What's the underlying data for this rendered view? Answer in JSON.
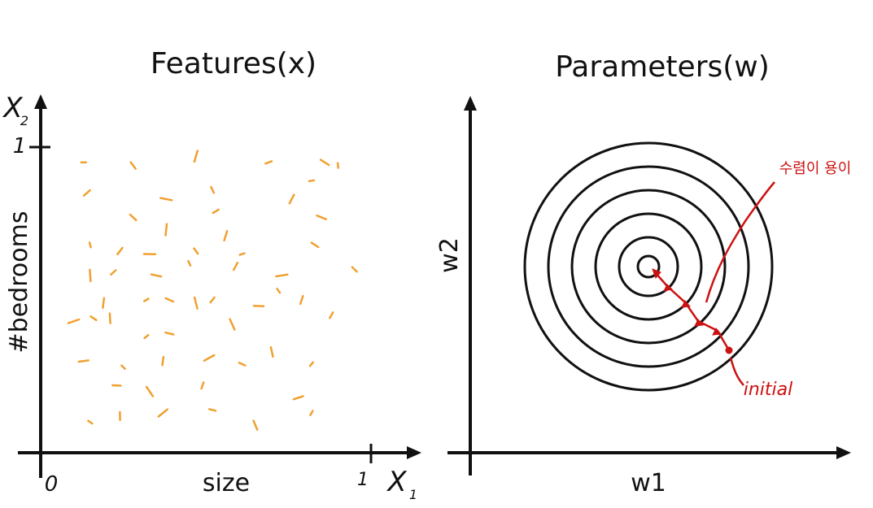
{
  "left_panel": {
    "title": "Features(x)",
    "x_label": "size",
    "y_label": "#bedrooms",
    "x_axis_name": "X",
    "x_axis_sub": "1",
    "y_axis_name": "X",
    "y_axis_sub": "2",
    "origin_tick": "0",
    "x_max_tick": "1",
    "y_max_tick": "1",
    "point_color": "#f0a030",
    "x_range": [
      0,
      1
    ],
    "y_range": [
      0,
      1
    ]
  },
  "right_panel": {
    "title": "Parameters(w)",
    "x_label": "w1",
    "y_label": "w2",
    "contour_count": 6,
    "annotation_text": "수렴이 용이",
    "start_label": "initial",
    "path_color": "#cc1111"
  },
  "chart_data": {
    "type": "scatter",
    "xlabel": "size",
    "ylabel": "#bedrooms",
    "xlim": [
      0,
      1
    ],
    "ylim": [
      0,
      1
    ],
    "points": [
      [
        0.13,
        0.95
      ],
      [
        0.28,
        0.94
      ],
      [
        0.47,
        0.97
      ],
      [
        0.69,
        0.95
      ],
      [
        0.86,
        0.95
      ],
      [
        0.9,
        0.94
      ],
      [
        0.14,
        0.85
      ],
      [
        0.38,
        0.83
      ],
      [
        0.52,
        0.86
      ],
      [
        0.76,
        0.83
      ],
      [
        0.82,
        0.89
      ],
      [
        0.28,
        0.77
      ],
      [
        0.38,
        0.73
      ],
      [
        0.53,
        0.79
      ],
      [
        0.85,
        0.77
      ],
      [
        0.15,
        0.68
      ],
      [
        0.24,
        0.66
      ],
      [
        0.33,
        0.65
      ],
      [
        0.47,
        0.66
      ],
      [
        0.56,
        0.71
      ],
      [
        0.61,
        0.65
      ],
      [
        0.83,
        0.68
      ],
      [
        0.15,
        0.58
      ],
      [
        0.22,
        0.59
      ],
      [
        0.35,
        0.58
      ],
      [
        0.45,
        0.62
      ],
      [
        0.59,
        0.61
      ],
      [
        0.73,
        0.58
      ],
      [
        0.95,
        0.6
      ],
      [
        0.19,
        0.49
      ],
      [
        0.32,
        0.5
      ],
      [
        0.39,
        0.5
      ],
      [
        0.47,
        0.49
      ],
      [
        0.52,
        0.5
      ],
      [
        0.66,
        0.48
      ],
      [
        0.72,
        0.53
      ],
      [
        0.79,
        0.5
      ],
      [
        0.1,
        0.43
      ],
      [
        0.16,
        0.44
      ],
      [
        0.21,
        0.44
      ],
      [
        0.32,
        0.38
      ],
      [
        0.39,
        0.39
      ],
      [
        0.58,
        0.42
      ],
      [
        0.88,
        0.45
      ],
      [
        0.13,
        0.3
      ],
      [
        0.25,
        0.28
      ],
      [
        0.37,
        0.3
      ],
      [
        0.51,
        0.31
      ],
      [
        0.61,
        0.29
      ],
      [
        0.7,
        0.33
      ],
      [
        0.82,
        0.29
      ],
      [
        0.23,
        0.22
      ],
      [
        0.33,
        0.2
      ],
      [
        0.49,
        0.22
      ],
      [
        0.78,
        0.18
      ],
      [
        0.15,
        0.1
      ],
      [
        0.24,
        0.12
      ],
      [
        0.37,
        0.13
      ],
      [
        0.52,
        0.14
      ],
      [
        0.65,
        0.09
      ],
      [
        0.82,
        0.13
      ]
    ]
  }
}
